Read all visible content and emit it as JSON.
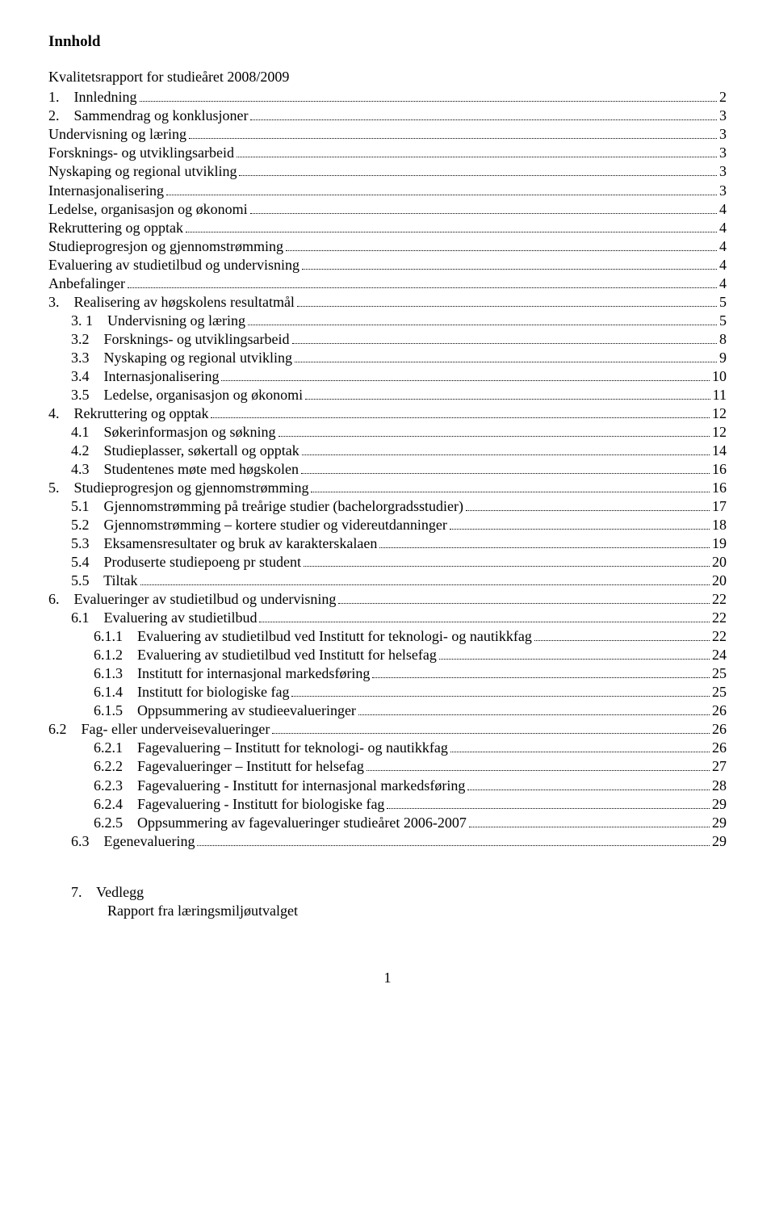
{
  "heading": "Innhold",
  "subheading": "Kvalitetsrapport for studieåret 2008/2009",
  "entries": [
    {
      "indent": 0,
      "label": "1.    Innledning",
      "page": "2"
    },
    {
      "indent": 0,
      "label": "2.    Sammendrag og konklusjoner",
      "page": "3"
    },
    {
      "indent": 0,
      "label": "Undervisning og læring",
      "page": "3"
    },
    {
      "indent": 0,
      "label": "Forsknings- og utviklingsarbeid",
      "page": "3"
    },
    {
      "indent": 0,
      "label": "Nyskaping og regional utvikling",
      "page": "3"
    },
    {
      "indent": 0,
      "label": "Internasjonalisering",
      "page": "3"
    },
    {
      "indent": 0,
      "label": "Ledelse, organisasjon og økonomi",
      "page": "4"
    },
    {
      "indent": 0,
      "label": "Rekruttering og opptak",
      "page": "4"
    },
    {
      "indent": 0,
      "label": "Studieprogresjon og gjennomstrømming",
      "page": "4"
    },
    {
      "indent": 0,
      "label": "Evaluering av studietilbud og undervisning",
      "page": "4"
    },
    {
      "indent": 0,
      "label": "Anbefalinger",
      "page": "4"
    },
    {
      "indent": 0,
      "label": "3.    Realisering av høgskolens resultatmål",
      "page": "5"
    },
    {
      "indent": 1,
      "label": "3. 1    Undervisning og læring",
      "page": "5"
    },
    {
      "indent": 1,
      "label": "3.2    Forsknings- og utviklingsarbeid",
      "page": "8"
    },
    {
      "indent": 1,
      "label": "3.3    Nyskaping og regional utvikling",
      "page": "9"
    },
    {
      "indent": 1,
      "label": "3.4    Internasjonalisering",
      "page": "10"
    },
    {
      "indent": 1,
      "label": "3.5    Ledelse, organisasjon og økonomi",
      "page": "11"
    },
    {
      "indent": 0,
      "label": "4.    Rekruttering og opptak",
      "page": "12"
    },
    {
      "indent": 1,
      "label": "4.1    Søkerinformasjon og søkning",
      "page": "12"
    },
    {
      "indent": 1,
      "label": "4.2    Studieplasser, søkertall og opptak",
      "page": "14"
    },
    {
      "indent": 1,
      "label": "4.3    Studentenes møte med høgskolen",
      "page": "16"
    },
    {
      "indent": 0,
      "label": "5.    Studieprogresjon og gjennomstrømming",
      "page": "16"
    },
    {
      "indent": 1,
      "label": "5.1    Gjennomstrømming på treårige studier (bachelorgradsstudier)",
      "page": "17"
    },
    {
      "indent": 1,
      "label": "5.2    Gjennomstrømming – kortere studier og videreutdanninger",
      "page": "18"
    },
    {
      "indent": 1,
      "label": "5.3    Eksamensresultater og bruk av karakterskalaen",
      "page": "19"
    },
    {
      "indent": 1,
      "label": "5.4    Produserte studiepoeng pr student",
      "page": "20"
    },
    {
      "indent": 1,
      "label": "5.5    Tiltak",
      "page": "20"
    },
    {
      "indent": 0,
      "label": "6.    Evalueringer av studietilbud og undervisning",
      "page": "22"
    },
    {
      "indent": 1,
      "label": "6.1    Evaluering av studietilbud",
      "page": "22"
    },
    {
      "indent": 2,
      "label": "6.1.1    Evaluering av studietilbud ved Institutt for teknologi- og nautikkfag",
      "page": "22"
    },
    {
      "indent": 2,
      "label": "6.1.2    Evaluering av studietilbud ved Institutt for helsefag",
      "page": "24"
    },
    {
      "indent": 2,
      "label": "6.1.3    Institutt for internasjonal markedsføring",
      "page": "25"
    },
    {
      "indent": 2,
      "label": "6.1.4    Institutt for biologiske fag",
      "page": "25"
    },
    {
      "indent": 2,
      "label": "6.1.5    Oppsummering av studieevalueringer",
      "page": "26"
    },
    {
      "indent": 0,
      "label": "6.2    Fag- eller underveisevalueringer",
      "page": "26"
    },
    {
      "indent": 2,
      "label": "6.2.1    Fagevaluering – Institutt for teknologi- og nautikkfag",
      "page": "26"
    },
    {
      "indent": 2,
      "label": "6.2.2    Fagevalueringer – Institutt for helsefag",
      "page": "27"
    },
    {
      "indent": 2,
      "label": "6.2.3    Fagevaluering - Institutt for internasjonal markedsføring",
      "page": "28"
    },
    {
      "indent": 2,
      "label": "6.2.4    Fagevaluering - Institutt for biologiske fag",
      "page": "29"
    },
    {
      "indent": 2,
      "label": "6.2.5    Oppsummering av fagevalueringer studieåret 2006-2007",
      "page": "29"
    },
    {
      "indent": 1,
      "label": "6.3    Egenevaluering",
      "page": "29"
    }
  ],
  "footer": {
    "line1": "7.    Vedlegg",
    "line2": "          Rapport fra læringsmiljøutvalget"
  },
  "pagenum": "1"
}
